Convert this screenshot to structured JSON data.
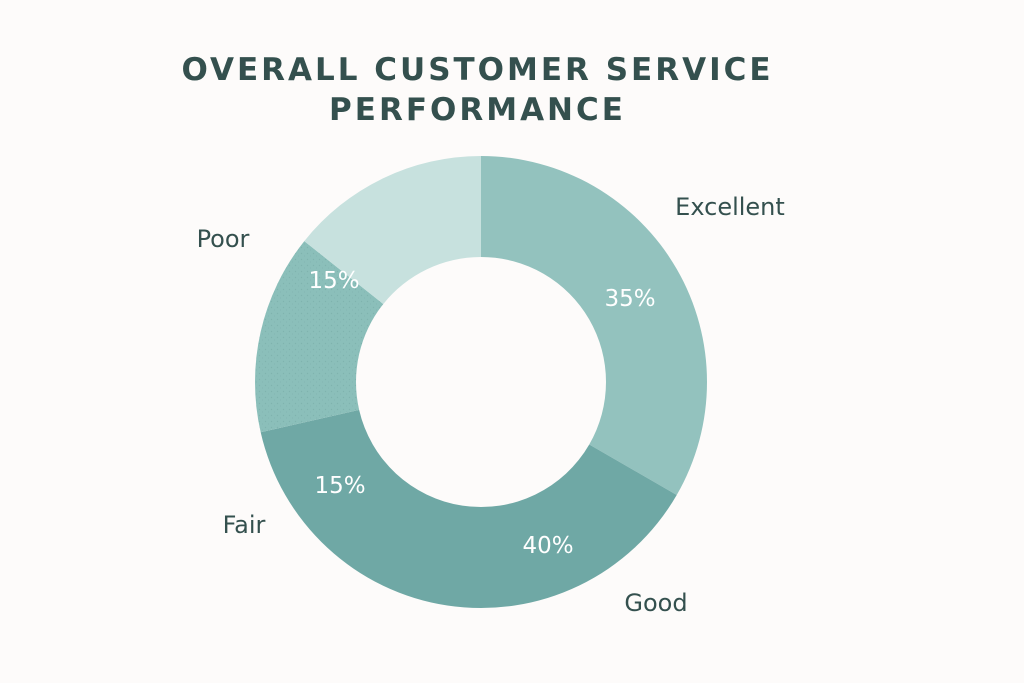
{
  "chart_data": {
    "type": "pie",
    "variant": "donut",
    "title_lines": [
      "OVERALL CUSTOMER SERVICE",
      "PERFORMANCE"
    ],
    "slices": [
      {
        "category": "Excellent",
        "value": 35,
        "value_label": "35%",
        "color": "#93c2be"
      },
      {
        "category": "Good",
        "value": 40,
        "value_label": "40%",
        "color": "#6fa8a5"
      },
      {
        "category": "Fair",
        "value": 15,
        "value_label": "15%",
        "color": "#8bbfba"
      },
      {
        "category": "Poor",
        "value": 15,
        "value_label": "15%",
        "color": "#c7e1de"
      }
    ],
    "legend": "none",
    "grid": false
  }
}
